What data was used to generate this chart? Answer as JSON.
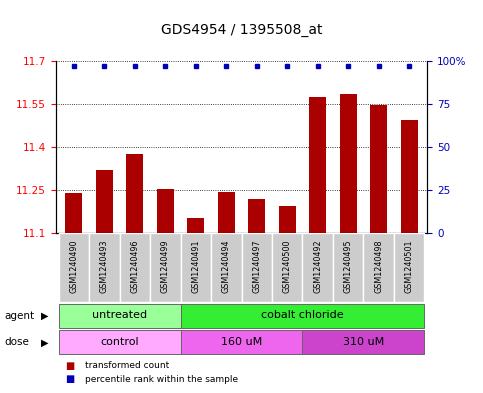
{
  "title": "GDS4954 / 1395508_at",
  "samples": [
    "GSM1240490",
    "GSM1240493",
    "GSM1240496",
    "GSM1240499",
    "GSM1240491",
    "GSM1240494",
    "GSM1240497",
    "GSM1240500",
    "GSM1240492",
    "GSM1240495",
    "GSM1240498",
    "GSM1240501"
  ],
  "bar_values": [
    11.24,
    11.32,
    11.375,
    11.255,
    11.155,
    11.245,
    11.22,
    11.195,
    11.575,
    11.585,
    11.545,
    11.495
  ],
  "percentile_values": [
    97,
    97,
    97,
    97,
    97,
    97,
    97,
    97,
    97,
    97,
    97,
    97
  ],
  "ylim_left": [
    11.1,
    11.7
  ],
  "yticks_left": [
    11.1,
    11.25,
    11.4,
    11.55,
    11.7
  ],
  "ylim_right": [
    0,
    100
  ],
  "yticks_right": [
    0,
    25,
    50,
    75,
    100
  ],
  "yticklabels_right": [
    "0",
    "25",
    "50",
    "75",
    "100%"
  ],
  "bar_color": "#aa0000",
  "dot_color": "#0000bb",
  "bar_baseline": 11.1,
  "agent_groups": [
    {
      "label": "untreated",
      "start": 0,
      "end": 4,
      "color": "#99ff99"
    },
    {
      "label": "cobalt chloride",
      "start": 4,
      "end": 12,
      "color": "#33ee33"
    }
  ],
  "dose_groups": [
    {
      "label": "control",
      "start": 0,
      "end": 4,
      "color": "#ffaaff"
    },
    {
      "label": "160 uM",
      "start": 4,
      "end": 8,
      "color": "#ee66ee"
    },
    {
      "label": "310 uM",
      "start": 8,
      "end": 12,
      "color": "#cc44cc"
    }
  ],
  "legend_items": [
    {
      "label": "transformed count",
      "color": "#aa0000",
      "marker": "s"
    },
    {
      "label": "percentile rank within the sample",
      "color": "#0000bb",
      "marker": "s"
    }
  ],
  "background_color": "#ffffff",
  "tick_fontsize": 7.5,
  "title_fontsize": 10
}
